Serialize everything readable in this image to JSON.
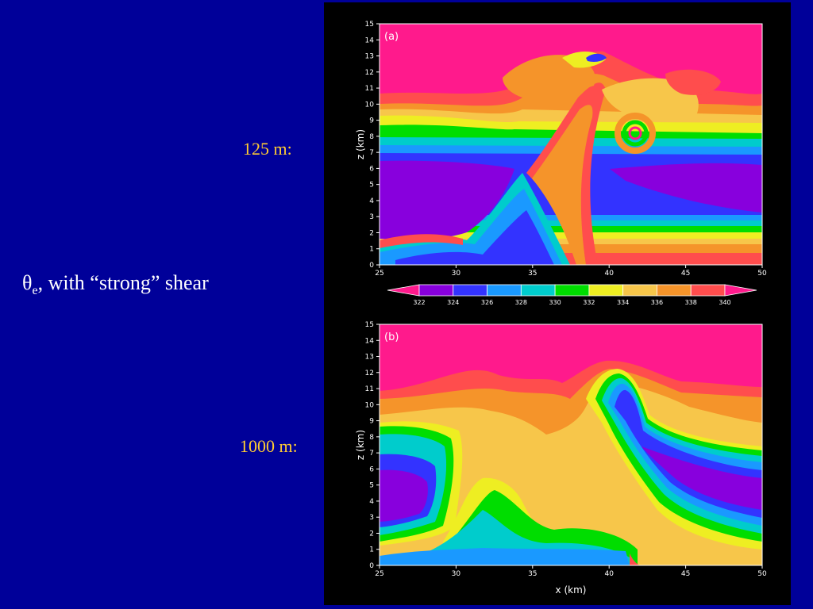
{
  "slide": {
    "title_symbol": "θ",
    "title_sub": "e",
    "title_rest": ", with “strong” shear",
    "label_a": "125 m:",
    "label_b": "1000 m:"
  },
  "chart_data": [
    {
      "type": "heatmap",
      "panel_label": "(a)",
      "xlim": [
        25,
        50
      ],
      "ylim": [
        0,
        15
      ],
      "xticks": [
        25,
        30,
        35,
        40,
        45,
        50
      ],
      "yticks": [
        0,
        1,
        2,
        3,
        4,
        5,
        6,
        7,
        8,
        9,
        10,
        11,
        12,
        13,
        14,
        15
      ],
      "xlabel": "",
      "ylabel": "z (km)"
    },
    {
      "type": "heatmap",
      "panel_label": "(b)",
      "xlim": [
        25,
        50
      ],
      "ylim": [
        0,
        15
      ],
      "xticks": [
        25,
        30,
        35,
        40,
        45,
        50
      ],
      "yticks": [
        0,
        1,
        2,
        3,
        4,
        5,
        6,
        7,
        8,
        9,
        10,
        11,
        12,
        13,
        14,
        15
      ],
      "xlabel": "x (km)",
      "ylabel": "z (km)"
    }
  ],
  "colorbar": {
    "ticks": [
      "322",
      "324",
      "326",
      "328",
      "330",
      "332",
      "334",
      "336",
      "338",
      "340"
    ],
    "colors": [
      "#ff1a8c",
      "#8800dd",
      "#3333ff",
      "#1a99ff",
      "#00cccc",
      "#00dd00",
      "#eeee22",
      "#f7c64a",
      "#f5942a",
      "#ff4d4d",
      "#ff1a8c"
    ]
  },
  "colors": {
    "background": "#000099",
    "label": "#ffcc33",
    "title": "#ffffff",
    "magenta": "#ff1a8c",
    "purple": "#8800dd",
    "blue": "#3333ff",
    "lightblue": "#1a99ff",
    "cyan": "#00cccc",
    "green": "#00dd00",
    "yellow": "#eeee22",
    "lightorange": "#f7c64a",
    "orange": "#f5942a",
    "red": "#ff4d4d"
  }
}
